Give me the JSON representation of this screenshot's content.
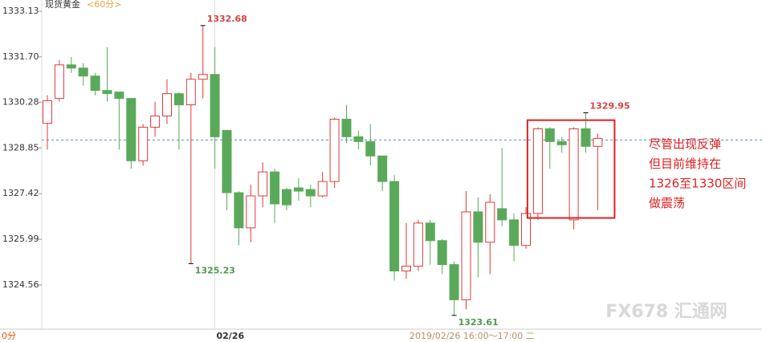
{
  "chart_data": {
    "type": "candlestick",
    "title": "现货黄金",
    "subtitle": "<60分>",
    "categories": [
      null,
      null,
      null,
      null,
      null,
      null,
      null,
      null,
      null,
      null,
      null,
      null,
      null,
      null,
      null,
      "02/26",
      null,
      null,
      null,
      null,
      null,
      null,
      null,
      null,
      null,
      null,
      null,
      null,
      null,
      null,
      null,
      null,
      null,
      null,
      null,
      null,
      null,
      null,
      null,
      null,
      null,
      null,
      null,
      null,
      null,
      null,
      null
    ],
    "open": [
      1329.62,
      1330.4,
      1331.45,
      1331.35,
      1331.1,
      1330.65,
      1330.6,
      1330.4,
      1328.45,
      1329.5,
      1329.85,
      1330.55,
      1330.2,
      1331.0,
      1331.15,
      1329.4,
      1327.45,
      1326.35,
      1327.35,
      1328.1,
      1327.55,
      1327.6,
      1327.55,
      1327.35,
      1327.8,
      1329.75,
      1329.2,
      1329.05,
      1328.6,
      1327.8,
      1325.0,
      1325.15,
      1326.5,
      1325.95,
      1325.2,
      1324.1,
      1326.85,
      1325.9,
      1326.95,
      1326.6,
      1325.8,
      1326.8,
      1329.45,
      1329.05,
      1326.6,
      1329.45,
      1328.9
    ],
    "high": [
      1330.5,
      1331.6,
      1331.7,
      1331.5,
      1331.2,
      1332.0,
      1330.6,
      1330.4,
      1329.6,
      1330.3,
      1331.0,
      1330.6,
      1331.2,
      1332.68,
      1332.0,
      1329.4,
      1327.5,
      1327.7,
      1328.4,
      1328.2,
      1327.6,
      1327.9,
      1327.7,
      1328.1,
      1329.8,
      1330.2,
      1329.4,
      1329.6,
      1328.6,
      1328.0,
      1326.5,
      1326.6,
      1326.6,
      1326.0,
      1325.3,
      1327.5,
      1327.3,
      1327.4,
      1328.85,
      1326.8,
      1327.0,
      1329.5,
      1329.5,
      1329.2,
      1329.5,
      1329.95,
      1329.3
    ],
    "low": [
      1328.8,
      1330.3,
      1331.2,
      1330.8,
      1330.5,
      1330.3,
      1328.8,
      1328.2,
      1328.3,
      1329.2,
      1329.6,
      1328.8,
      1325.23,
      1330.4,
      1328.2,
      1326.9,
      1325.8,
      1325.9,
      1327.0,
      1326.5,
      1326.9,
      1327.2,
      1327.0,
      1327.3,
      1327.6,
      1329.0,
      1328.8,
      1328.3,
      1327.5,
      1324.7,
      1324.75,
      1325.0,
      1325.2,
      1324.9,
      1323.61,
      1323.8,
      1324.8,
      1324.9,
      1326.4,
      1325.3,
      1325.7,
      1326.6,
      1328.2,
      1328.7,
      1326.3,
      1328.7,
      1326.9
    ],
    "close": [
      1330.33,
      1331.45,
      1331.35,
      1331.1,
      1330.65,
      1330.55,
      1330.4,
      1328.45,
      1329.5,
      1329.85,
      1330.55,
      1330.2,
      1331.0,
      1331.15,
      1329.2,
      1327.45,
      1326.35,
      1327.35,
      1328.1,
      1327.1,
      1327.07,
      1327.5,
      1327.35,
      1327.8,
      1329.75,
      1329.2,
      1329.05,
      1328.6,
      1327.8,
      1325.0,
      1325.15,
      1326.5,
      1325.95,
      1325.2,
      1324.1,
      1326.85,
      1325.9,
      1327.15,
      1326.6,
      1325.8,
      1326.8,
      1329.45,
      1329.05,
      1328.95,
      1329.45,
      1328.9,
      1329.15
    ],
    "up_color": "#e03a3a",
    "down_color": "#5aa95a",
    "ylim": [
      1323.18,
      1333.48
    ],
    "yticks": [
      1333.13,
      {
        "value": 1331.7,
        "label": "1331.70"
      },
      1330.28,
      1328.85,
      1327.42,
      1325.99,
      1324.56
    ],
    "reference_line": 1329.1,
    "extreme_labels": [
      {
        "index": 13,
        "value": 1332.68,
        "color": "#d04545"
      },
      {
        "index": 12,
        "value": 1325.23,
        "color": "#4e9a4e"
      },
      {
        "index": 34,
        "value": 1323.61,
        "color": "#4e9a4e"
      },
      {
        "index": 45,
        "value": 1329.95,
        "color": "#d04545"
      }
    ],
    "highlight": {
      "from_index": 41,
      "to_index": 46,
      "range": [
        1326.66,
        1329.72
      ]
    },
    "note": [
      "尽管出现反弹",
      "但目前维持在",
      "1326至1330区间",
      "做震荡"
    ],
    "footer": {
      "left": "0分",
      "time": "2019/02/26 16:00～17:00 二"
    },
    "watermark": "FX678 汇通网"
  }
}
